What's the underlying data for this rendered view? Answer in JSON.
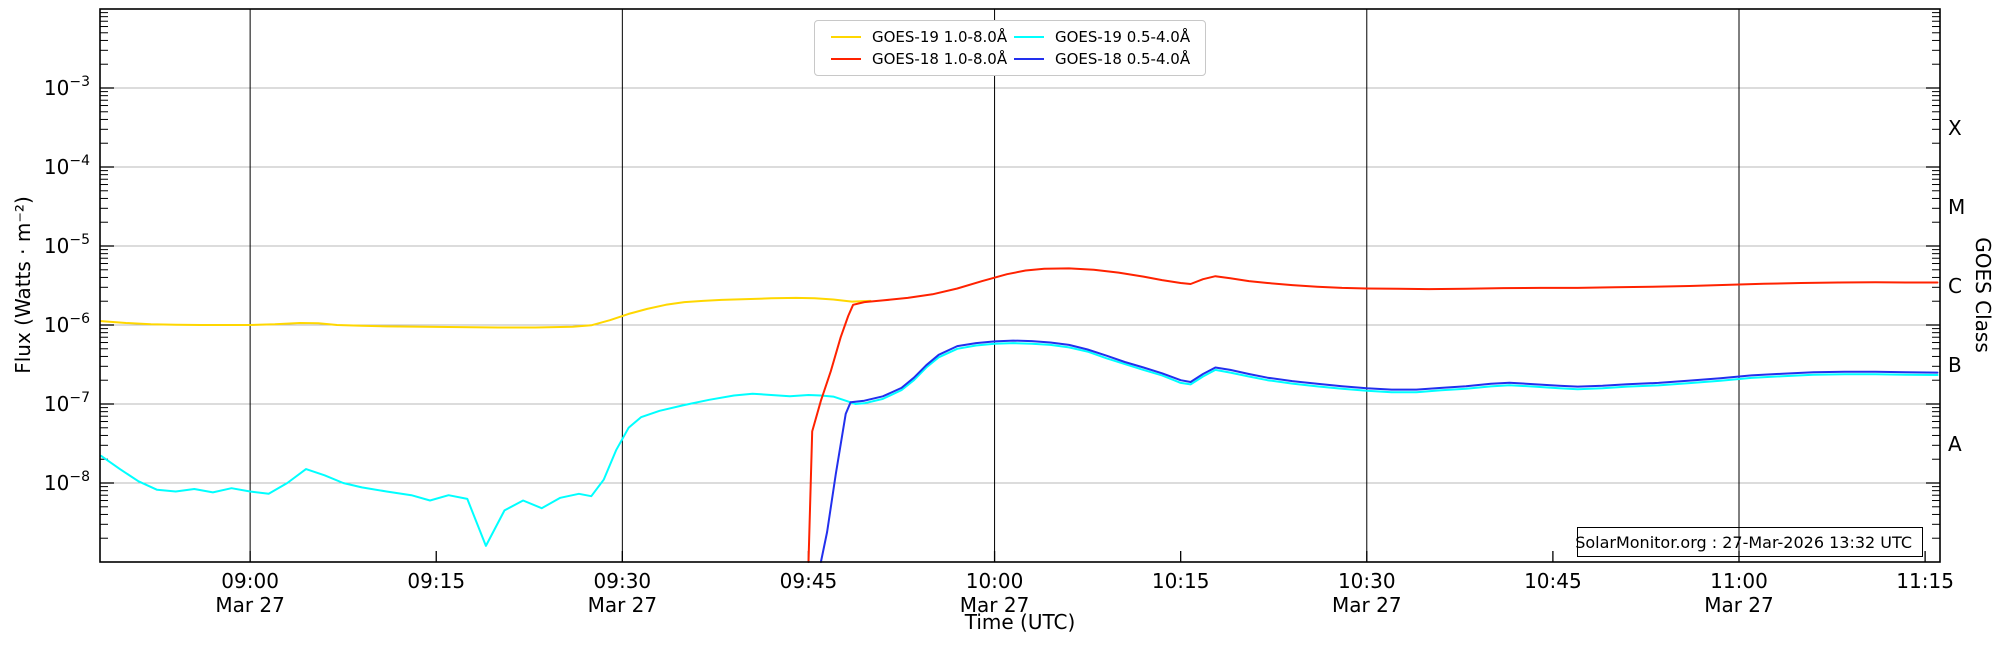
{
  "annotation": "SolarMonitor.org : 27-Mar-2026 13:32 UTC",
  "chart_data": {
    "type": "line",
    "xlabel": "Time (UTC)",
    "ylabel_left": "Flux (Watts · m⁻²)",
    "ylabel_right": "GOES Class",
    "grid": "horizontal gray decade lines; vertical black lines every 30 min",
    "legend_position": "top center, 2 columns",
    "x_domain": {
      "t_min": 527.9,
      "t_max": 676.2,
      "unit": "minutes UTC since 00:00"
    },
    "x_ticks": [
      {
        "t": 540,
        "label": "09:00",
        "date": "Mar 27"
      },
      {
        "t": 555,
        "label": "09:15"
      },
      {
        "t": 570,
        "label": "09:30",
        "date": "Mar 27"
      },
      {
        "t": 585,
        "label": "09:45"
      },
      {
        "t": 600,
        "label": "10:00",
        "date": "Mar 27"
      },
      {
        "t": 615,
        "label": "10:15"
      },
      {
        "t": 630,
        "label": "10:30",
        "date": "Mar 27"
      },
      {
        "t": 645,
        "label": "10:45"
      },
      {
        "t": 660,
        "label": "11:00",
        "date": "Mar 27"
      },
      {
        "t": 675,
        "label": "11:15"
      }
    ],
    "vlines_t": [
      540,
      570,
      600,
      630,
      660
    ],
    "y_axis": {
      "scale": "log",
      "exp_min": -9,
      "exp_max": -2,
      "labeled_exps": [
        -3,
        -4,
        -5,
        -6,
        -7,
        -8
      ]
    },
    "goes_class_labels": [
      {
        "label": "X",
        "exp_center": -3.5
      },
      {
        "label": "M",
        "exp_center": -4.5
      },
      {
        "label": "C",
        "exp_center": -5.5
      },
      {
        "label": "B",
        "exp_center": -6.5
      },
      {
        "label": "A",
        "exp_center": -7.5
      }
    ],
    "series": [
      {
        "name": "GOES-19 1.0-8.0Å",
        "color": "#ffd700",
        "points": [
          [
            528,
            1.12e-06
          ],
          [
            530,
            1.06e-06
          ],
          [
            532,
            1.02e-06
          ],
          [
            534,
            1.01e-06
          ],
          [
            536,
            1e-06
          ],
          [
            538,
            1e-06
          ],
          [
            540,
            1e-06
          ],
          [
            542,
            1.02e-06
          ],
          [
            544,
            1.06e-06
          ],
          [
            545.5,
            1.05e-06
          ],
          [
            547,
            1e-06
          ],
          [
            549,
            9.8e-07
          ],
          [
            551,
            9.6e-07
          ],
          [
            554,
            9.5e-07
          ],
          [
            557,
            9.4e-07
          ],
          [
            560,
            9.3e-07
          ],
          [
            563,
            9.3e-07
          ],
          [
            566,
            9.5e-07
          ],
          [
            567.5,
            9.9e-07
          ],
          [
            569,
            1.15e-06
          ],
          [
            570.5,
            1.38e-06
          ],
          [
            572,
            1.6e-06
          ],
          [
            573.5,
            1.8e-06
          ],
          [
            575,
            1.95e-06
          ],
          [
            576.5,
            2.02e-06
          ],
          [
            578,
            2.08e-06
          ],
          [
            580,
            2.13e-06
          ],
          [
            582,
            2.18e-06
          ],
          [
            584,
            2.2e-06
          ],
          [
            585.5,
            2.18e-06
          ],
          [
            587,
            2.1e-06
          ],
          [
            588.5,
            1.98e-06
          ],
          [
            590,
            2.02e-06
          ]
        ]
      },
      {
        "name": "GOES-18 1.0-8.0Å",
        "color": "#ff2200",
        "points": [
          [
            585.0,
            1e-09
          ],
          [
            585.3,
            4.5e-08
          ],
          [
            586.0,
            1.1e-07
          ],
          [
            586.8,
            2.6e-07
          ],
          [
            587.6,
            7e-07
          ],
          [
            588.2,
            1.3e-06
          ],
          [
            588.6,
            1.8e-06
          ],
          [
            589.5,
            1.95e-06
          ],
          [
            591,
            2.05e-06
          ],
          [
            593,
            2.2e-06
          ],
          [
            595,
            2.45e-06
          ],
          [
            597,
            2.9e-06
          ],
          [
            599,
            3.6e-06
          ],
          [
            601,
            4.4e-06
          ],
          [
            602.5,
            4.9e-06
          ],
          [
            604,
            5.15e-06
          ],
          [
            606,
            5.2e-06
          ],
          [
            608,
            5e-06
          ],
          [
            610,
            4.6e-06
          ],
          [
            612,
            4.1e-06
          ],
          [
            613.5,
            3.7e-06
          ],
          [
            615,
            3.4e-06
          ],
          [
            615.8,
            3.3e-06
          ],
          [
            616.8,
            3.8e-06
          ],
          [
            617.8,
            4.15e-06
          ],
          [
            619,
            3.9e-06
          ],
          [
            620.5,
            3.6e-06
          ],
          [
            622,
            3.4e-06
          ],
          [
            624,
            3.2e-06
          ],
          [
            626,
            3.05e-06
          ],
          [
            628,
            2.95e-06
          ],
          [
            630,
            2.9e-06
          ],
          [
            632.5,
            2.87e-06
          ],
          [
            635,
            2.85e-06
          ],
          [
            638,
            2.88e-06
          ],
          [
            641,
            2.93e-06
          ],
          [
            644,
            2.95e-06
          ],
          [
            647,
            2.95e-06
          ],
          [
            650,
            3e-06
          ],
          [
            653,
            3.05e-06
          ],
          [
            656,
            3.12e-06
          ],
          [
            659,
            3.22e-06
          ],
          [
            662,
            3.32e-06
          ],
          [
            665,
            3.4e-06
          ],
          [
            668,
            3.45e-06
          ],
          [
            671,
            3.47e-06
          ],
          [
            674,
            3.45e-06
          ],
          [
            676,
            3.45e-06
          ]
        ]
      },
      {
        "name": "GOES-19 0.5-4.0Å",
        "color": "#00ffff",
        "points": [
          [
            528,
            2.2e-08
          ],
          [
            529.5,
            1.5e-08
          ],
          [
            531,
            1.05e-08
          ],
          [
            532.5,
            8.2e-09
          ],
          [
            534,
            7.8e-09
          ],
          [
            535.5,
            8.4e-09
          ],
          [
            537,
            7.6e-09
          ],
          [
            538.5,
            8.6e-09
          ],
          [
            540,
            7.8e-09
          ],
          [
            541.5,
            7.3e-09
          ],
          [
            543,
            1e-08
          ],
          [
            544.5,
            1.5e-08
          ],
          [
            546,
            1.25e-08
          ],
          [
            547.5,
            1e-08
          ],
          [
            549,
            8.8e-09
          ],
          [
            551,
            7.8e-09
          ],
          [
            553,
            7e-09
          ],
          [
            554.5,
            6e-09
          ],
          [
            556,
            7e-09
          ],
          [
            557.5,
            6.3e-09
          ],
          [
            559,
            1.6e-09
          ],
          [
            560.5,
            4.5e-09
          ],
          [
            562,
            6e-09
          ],
          [
            563.5,
            4.8e-09
          ],
          [
            565,
            6.5e-09
          ],
          [
            566.5,
            7.3e-09
          ],
          [
            567.5,
            6.8e-09
          ],
          [
            568.5,
            1.1e-08
          ],
          [
            569.5,
            2.6e-08
          ],
          [
            570.5,
            5e-08
          ],
          [
            571.5,
            6.8e-08
          ],
          [
            573,
            8.2e-08
          ],
          [
            575,
            9.7e-08
          ],
          [
            577,
            1.13e-07
          ],
          [
            579,
            1.28e-07
          ],
          [
            580.5,
            1.35e-07
          ],
          [
            582,
            1.3e-07
          ],
          [
            583.5,
            1.25e-07
          ],
          [
            585,
            1.3e-07
          ],
          [
            586,
            1.28e-07
          ],
          [
            587,
            1.24e-07
          ],
          [
            588,
            1.1e-07
          ],
          [
            588.8,
            1e-07
          ],
          [
            589.5,
            1.02e-07
          ],
          [
            591,
            1.16e-07
          ],
          [
            592.5,
            1.5e-07
          ],
          [
            593.5,
            2e-07
          ],
          [
            594.5,
            2.9e-07
          ],
          [
            595.5,
            3.9e-07
          ],
          [
            597,
            5e-07
          ],
          [
            598.5,
            5.5e-07
          ],
          [
            600,
            5.8e-07
          ],
          [
            601.5,
            5.9e-07
          ],
          [
            603,
            5.8e-07
          ],
          [
            604.5,
            5.6e-07
          ],
          [
            606,
            5.2e-07
          ],
          [
            607.5,
            4.6e-07
          ],
          [
            609,
            3.8e-07
          ],
          [
            610.5,
            3.2e-07
          ],
          [
            612,
            2.7e-07
          ],
          [
            613.5,
            2.3e-07
          ],
          [
            615,
            1.85e-07
          ],
          [
            615.8,
            1.77e-07
          ],
          [
            616.8,
            2.23e-07
          ],
          [
            617.8,
            2.7e-07
          ],
          [
            619,
            2.5e-07
          ],
          [
            620.5,
            2.23e-07
          ],
          [
            622,
            2e-07
          ],
          [
            624,
            1.81e-07
          ],
          [
            626,
            1.67e-07
          ],
          [
            628,
            1.56e-07
          ],
          [
            630,
            1.47e-07
          ],
          [
            632,
            1.41e-07
          ],
          [
            634,
            1.41e-07
          ],
          [
            636,
            1.49e-07
          ],
          [
            638,
            1.56e-07
          ],
          [
            640,
            1.67e-07
          ],
          [
            641.5,
            1.73e-07
          ],
          [
            643.5,
            1.66e-07
          ],
          [
            645.5,
            1.58e-07
          ],
          [
            647,
            1.54e-07
          ],
          [
            649,
            1.58e-07
          ],
          [
            651,
            1.66e-07
          ],
          [
            653.5,
            1.72e-07
          ],
          [
            656,
            1.84e-07
          ],
          [
            658.5,
            1.97e-07
          ],
          [
            661,
            2.14e-07
          ],
          [
            663.5,
            2.25e-07
          ],
          [
            666,
            2.34e-07
          ],
          [
            668.5,
            2.38e-07
          ],
          [
            671,
            2.38e-07
          ],
          [
            673.5,
            2.34e-07
          ],
          [
            676,
            2.33e-07
          ]
        ]
      },
      {
        "name": "GOES-18 0.5-4.0Å",
        "color": "#2230ee",
        "points": [
          [
            586.0,
            1e-09
          ],
          [
            586.5,
            2.4e-09
          ],
          [
            587.2,
            1.3e-08
          ],
          [
            588.0,
            7.5e-08
          ],
          [
            588.4,
            1.05e-07
          ],
          [
            589.5,
            1.1e-07
          ],
          [
            591,
            1.25e-07
          ],
          [
            592.5,
            1.6e-07
          ],
          [
            593.5,
            2.15e-07
          ],
          [
            594.5,
            3.1e-07
          ],
          [
            595.5,
            4.2e-07
          ],
          [
            597,
            5.4e-07
          ],
          [
            598.5,
            5.9e-07
          ],
          [
            600,
            6.2e-07
          ],
          [
            601.5,
            6.35e-07
          ],
          [
            603,
            6.25e-07
          ],
          [
            604.5,
            6e-07
          ],
          [
            606,
            5.6e-07
          ],
          [
            607.5,
            4.9e-07
          ],
          [
            609,
            4.1e-07
          ],
          [
            610.5,
            3.4e-07
          ],
          [
            612,
            2.9e-07
          ],
          [
            613.5,
            2.45e-07
          ],
          [
            615,
            2e-07
          ],
          [
            615.8,
            1.9e-07
          ],
          [
            616.8,
            2.4e-07
          ],
          [
            617.8,
            2.9e-07
          ],
          [
            619,
            2.7e-07
          ],
          [
            620.5,
            2.4e-07
          ],
          [
            622,
            2.15e-07
          ],
          [
            624,
            1.95e-07
          ],
          [
            626,
            1.8e-07
          ],
          [
            628,
            1.68e-07
          ],
          [
            630,
            1.58e-07
          ],
          [
            632,
            1.52e-07
          ],
          [
            634,
            1.52e-07
          ],
          [
            636,
            1.6e-07
          ],
          [
            638,
            1.68e-07
          ],
          [
            640,
            1.8e-07
          ],
          [
            641.5,
            1.86e-07
          ],
          [
            643.5,
            1.78e-07
          ],
          [
            645.5,
            1.7e-07
          ],
          [
            647,
            1.66e-07
          ],
          [
            649,
            1.7e-07
          ],
          [
            651,
            1.78e-07
          ],
          [
            653.5,
            1.85e-07
          ],
          [
            656,
            1.98e-07
          ],
          [
            658.5,
            2.12e-07
          ],
          [
            661,
            2.3e-07
          ],
          [
            663.5,
            2.42e-07
          ],
          [
            666,
            2.52e-07
          ],
          [
            668.5,
            2.56e-07
          ],
          [
            671,
            2.56e-07
          ],
          [
            673.5,
            2.52e-07
          ],
          [
            676,
            2.5e-07
          ]
        ]
      }
    ],
    "colors": {
      "gridline": "#b8b8b8",
      "vline": "#000000",
      "spine": "#000000"
    }
  }
}
